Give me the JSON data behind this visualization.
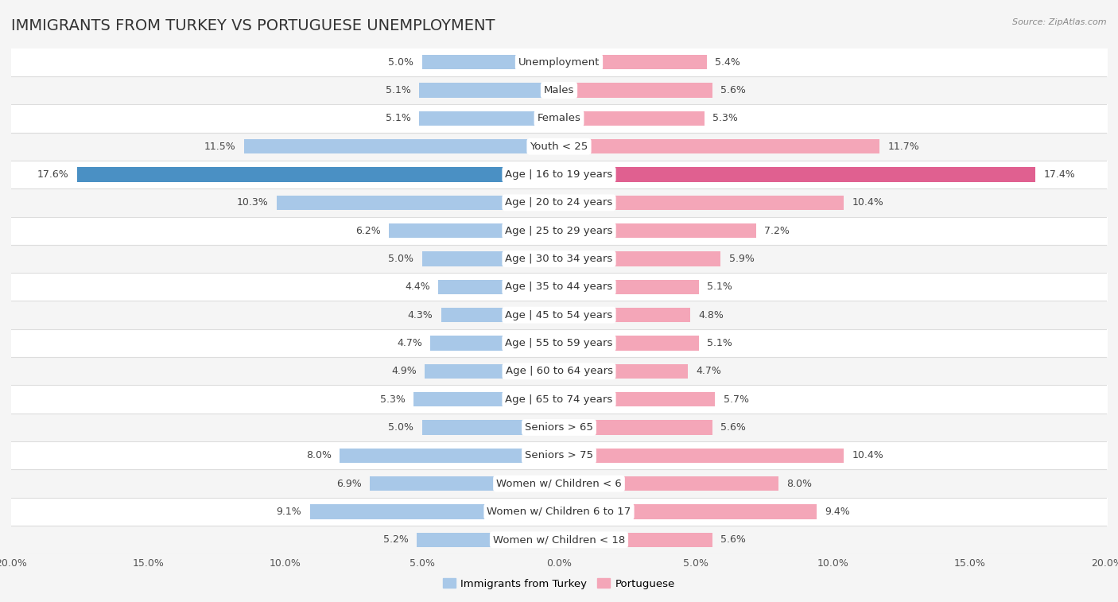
{
  "title": "IMMIGRANTS FROM TURKEY VS PORTUGUESE UNEMPLOYMENT",
  "source": "Source: ZipAtlas.com",
  "categories": [
    "Unemployment",
    "Males",
    "Females",
    "Youth < 25",
    "Age | 16 to 19 years",
    "Age | 20 to 24 years",
    "Age | 25 to 29 years",
    "Age | 30 to 34 years",
    "Age | 35 to 44 years",
    "Age | 45 to 54 years",
    "Age | 55 to 59 years",
    "Age | 60 to 64 years",
    "Age | 65 to 74 years",
    "Seniors > 65",
    "Seniors > 75",
    "Women w/ Children < 6",
    "Women w/ Children 6 to 17",
    "Women w/ Children < 18"
  ],
  "left_values": [
    5.0,
    5.1,
    5.1,
    11.5,
    17.6,
    10.3,
    6.2,
    5.0,
    4.4,
    4.3,
    4.7,
    4.9,
    5.3,
    5.0,
    8.0,
    6.9,
    9.1,
    5.2
  ],
  "right_values": [
    5.4,
    5.6,
    5.3,
    11.7,
    17.4,
    10.4,
    7.2,
    5.9,
    5.1,
    4.8,
    5.1,
    4.7,
    5.7,
    5.6,
    10.4,
    8.0,
    9.4,
    5.6
  ],
  "left_color": "#a8c8e8",
  "right_color": "#f4a6b8",
  "highlight_left_color": "#4a90c4",
  "highlight_right_color": "#e06090",
  "highlight_rows": [
    4
  ],
  "row_color_even": "#f5f5f5",
  "row_color_odd": "#ffffff",
  "separator_color": "#dddddd",
  "xlim": 20.0,
  "legend_left": "Immigrants from Turkey",
  "legend_right": "Portuguese",
  "title_fontsize": 14,
  "label_fontsize": 9.5,
  "value_fontsize": 9,
  "tick_fontsize": 9
}
